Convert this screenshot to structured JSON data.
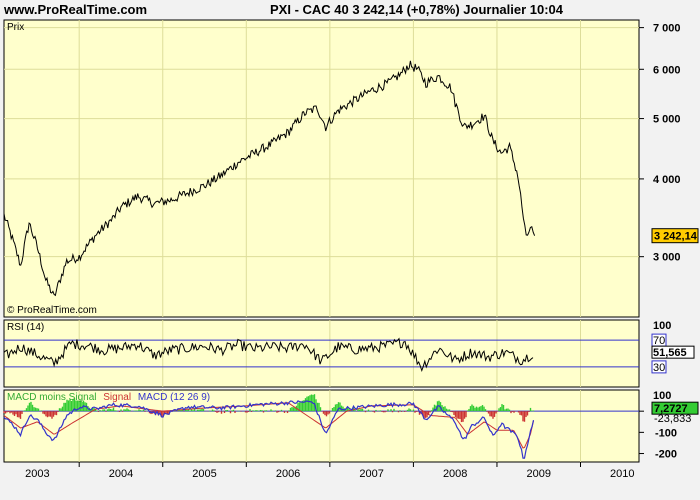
{
  "header": {
    "site": "www.ProRealTime.com",
    "title": "PXI - CAC 40    3 242,14 (+0,78%)    Journalier  10:04"
  },
  "panels": {
    "price_label": "Prix",
    "watermark": "© ProRealTime.com",
    "rsi_label": "RSI (14)",
    "macd_legend": [
      "MACD moins Signal",
      "Signal",
      "MACD (12 26 9)"
    ]
  },
  "colors": {
    "bg": "#ffffcc",
    "price_line": "#000000",
    "rsi_line": "#000000",
    "rsi_band": "#3333cc",
    "macd_line": "#3333cc",
    "signal_line": "#cc3333",
    "histogram": "#33cc33",
    "highlight": "#ffcc00"
  },
  "chart_data": [
    {
      "type": "line",
      "title": "PXI - CAC 40",
      "ylabel": "Prix",
      "x_labels": [
        "2003",
        "2004",
        "2005",
        "2006",
        "2007",
        "2008",
        "2009",
        "2010"
      ],
      "x_range": [
        2002.6,
        2010.2
      ],
      "yticks": [
        3000,
        4000,
        5000,
        6000,
        7000
      ],
      "ytick_labels": [
        "3 000",
        "4 000",
        "5 000",
        "6 000",
        "7 000"
      ],
      "ylim": [
        2400,
        7200
      ],
      "log_scale": true,
      "series": [
        {
          "name": "CAC 40",
          "x": [
            2002.6,
            2002.7,
            2002.8,
            2002.9,
            2003.0,
            2003.1,
            2003.2,
            2003.35,
            2003.5,
            2003.7,
            2003.9,
            2004.0,
            2004.2,
            2004.4,
            2004.6,
            2004.8,
            2005.0,
            2005.2,
            2005.4,
            2005.6,
            2005.8,
            2006.0,
            2006.2,
            2006.35,
            2006.45,
            2006.6,
            2006.8,
            2007.0,
            2007.2,
            2007.35,
            2007.45,
            2007.55,
            2007.65,
            2007.8,
            2007.95,
            2008.0,
            2008.1,
            2008.2,
            2008.35,
            2008.45,
            2008.55,
            2008.65,
            2008.75,
            2008.8,
            2008.85,
            2008.9,
            2008.95
          ],
          "values": [
            3500,
            3200,
            2900,
            3400,
            3100,
            2750,
            2580,
            2950,
            3000,
            3250,
            3450,
            3600,
            3750,
            3650,
            3700,
            3800,
            3900,
            4050,
            4250,
            4400,
            4550,
            4750,
            5100,
            5200,
            4850,
            5150,
            5350,
            5550,
            5700,
            5900,
            6100,
            6000,
            5700,
            5850,
            5600,
            5300,
            4850,
            4900,
            5050,
            4600,
            4400,
            4500,
            4050,
            3600,
            3200,
            3350,
            3242.14
          ]
        }
      ],
      "current_value": "3 242,14"
    },
    {
      "type": "line",
      "title": "RSI (14)",
      "ylim": [
        0,
        100
      ],
      "yticks": [
        70,
        30
      ],
      "y_top_label": "100",
      "current_value": "51,565",
      "x": [
        2002.6,
        2002.8,
        2003.0,
        2003.2,
        2003.4,
        2003.6,
        2003.8,
        2004.0,
        2004.2,
        2004.4,
        2004.6,
        2004.8,
        2005.0,
        2005.2,
        2005.4,
        2005.6,
        2005.8,
        2006.0,
        2006.2,
        2006.4,
        2006.6,
        2006.8,
        2007.0,
        2007.2,
        2007.4,
        2007.6,
        2007.8,
        2008.0,
        2008.2,
        2008.4,
        2008.6,
        2008.8,
        2008.95
      ],
      "values": [
        45,
        60,
        48,
        35,
        65,
        62,
        55,
        58,
        64,
        47,
        55,
        58,
        61,
        55,
        63,
        57,
        60,
        58,
        64,
        38,
        60,
        56,
        58,
        62,
        68,
        30,
        58,
        40,
        52,
        45,
        52,
        40,
        52
      ]
    },
    {
      "type": "line",
      "title": "MACD (12 26 9)",
      "yticks": [
        0,
        -100,
        -200
      ],
      "ytick_labels": [
        "0",
        "-100",
        "-200"
      ],
      "y_top_label": "100",
      "ylim": [
        -240,
        100
      ],
      "current_value": "7,2727",
      "signal_value": "-23,833",
      "series": [
        {
          "name": "MACD (12 26 9)",
          "x": [
            2002.6,
            2002.7,
            2002.8,
            2002.9,
            2003.0,
            2003.1,
            2003.2,
            2003.35,
            2003.5,
            2003.7,
            2003.9,
            2004.2,
            2004.5,
            2004.8,
            2005.2,
            2005.6,
            2006.0,
            2006.3,
            2006.45,
            2006.6,
            2006.9,
            2007.2,
            2007.5,
            2007.65,
            2007.8,
            2008.0,
            2008.1,
            2008.2,
            2008.35,
            2008.45,
            2008.55,
            2008.65,
            2008.75,
            2008.82,
            2008.88,
            2008.95
          ],
          "values": [
            -30,
            -60,
            -110,
            -20,
            -40,
            -100,
            -140,
            -20,
            20,
            10,
            30,
            25,
            -20,
            20,
            15,
            30,
            40,
            45,
            -110,
            10,
            20,
            30,
            35,
            -40,
            20,
            -50,
            -140,
            -70,
            -30,
            -120,
            -60,
            -90,
            -120,
            -230,
            -130,
            -30
          ]
        },
        {
          "name": "Signal",
          "x": [
            2002.6,
            2002.8,
            2003.0,
            2003.2,
            2003.4,
            2003.7,
            2004.0,
            2004.5,
            2005.0,
            2005.5,
            2006.0,
            2006.45,
            2006.7,
            2007.0,
            2007.5,
            2007.7,
            2008.0,
            2008.15,
            2008.35,
            2008.5,
            2008.7,
            2008.82,
            2008.9,
            2008.95
          ],
          "values": [
            -20,
            -80,
            -50,
            -110,
            -60,
            10,
            25,
            0,
            15,
            25,
            40,
            -80,
            0,
            25,
            30,
            -20,
            -30,
            -110,
            -50,
            -90,
            -90,
            -180,
            -110,
            -24
          ]
        }
      ]
    }
  ]
}
